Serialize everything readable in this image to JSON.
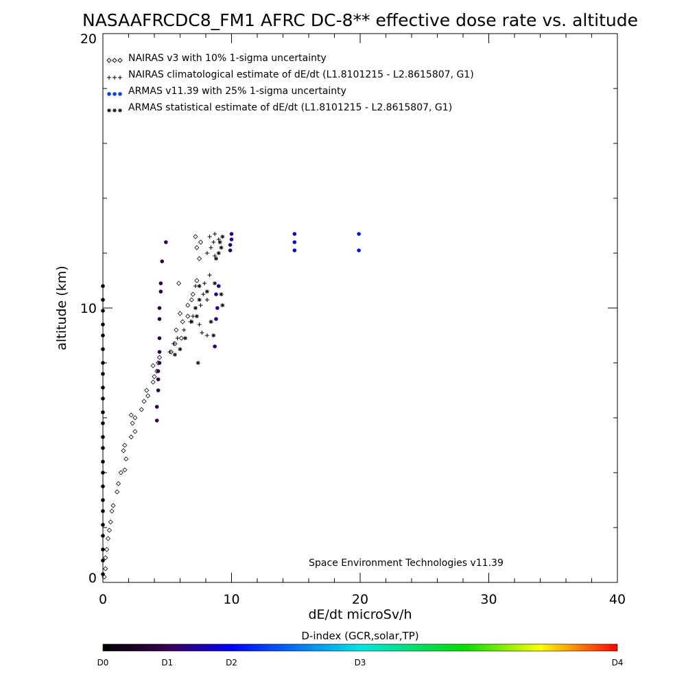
{
  "chart_data": {
    "type": "scatter",
    "title": "NASAAFRCDC8_FM1 AFRC DC-8** effective dose rate vs. altitude",
    "xlabel": "dE/dt microSv/h",
    "ylabel": "altitude (km)",
    "xlim": [
      0,
      40
    ],
    "ylim": [
      0,
      20
    ],
    "x_ticks": [
      "0",
      "10",
      "20",
      "30",
      "40"
    ],
    "y_ticks": [
      "0",
      "10",
      "20"
    ],
    "legend_placement": "top-left",
    "grid": false,
    "credit": "Space Environment Technologies v11.39",
    "colorbar": {
      "title": "D-index (GCR,solar,TP)",
      "labels": [
        "D0",
        "D1",
        "D2",
        "D3",
        "D4"
      ],
      "label_positions": [
        0,
        0.125,
        0.25,
        0.5,
        1.0
      ],
      "colors": [
        "#000000",
        "#3a0050",
        "#0000ff",
        "#00e5e5",
        "#00dd00",
        "#ffff00",
        "#ff0000"
      ]
    },
    "series": [
      {
        "name": "NAIRAS v3 with 10% 1-sigma uncertainty",
        "marker": "diamond",
        "points": [
          [
            0.1,
            0.2
          ],
          [
            0.2,
            0.5
          ],
          [
            0.2,
            0.9
          ],
          [
            0.3,
            1.2
          ],
          [
            0.4,
            1.6
          ],
          [
            0.5,
            1.9
          ],
          [
            0.6,
            2.2
          ],
          [
            0.7,
            2.6
          ],
          [
            0.8,
            2.8
          ],
          [
            1.1,
            3.3
          ],
          [
            1.2,
            3.6
          ],
          [
            1.4,
            4.0
          ],
          [
            1.7,
            4.1
          ],
          [
            1.8,
            4.5
          ],
          [
            1.6,
            4.8
          ],
          [
            1.7,
            5.0
          ],
          [
            2.2,
            5.3
          ],
          [
            2.5,
            5.5
          ],
          [
            2.3,
            5.8
          ],
          [
            2.5,
            6.0
          ],
          [
            2.2,
            6.1
          ],
          [
            3.0,
            6.3
          ],
          [
            3.2,
            6.6
          ],
          [
            3.5,
            6.8
          ],
          [
            3.4,
            7.0
          ],
          [
            3.9,
            7.3
          ],
          [
            4.0,
            7.5
          ],
          [
            4.2,
            7.7
          ],
          [
            3.9,
            7.9
          ],
          [
            4.3,
            8.0
          ],
          [
            4.4,
            8.2
          ],
          [
            5.3,
            8.4
          ],
          [
            5.6,
            8.7
          ],
          [
            6.1,
            8.9
          ],
          [
            5.7,
            9.2
          ],
          [
            6.2,
            9.5
          ],
          [
            6.6,
            9.7
          ],
          [
            6.0,
            9.8
          ],
          [
            6.6,
            10.1
          ],
          [
            6.9,
            10.3
          ],
          [
            7.0,
            10.5
          ],
          [
            5.9,
            10.9
          ],
          [
            7.3,
            11.0
          ],
          [
            7.5,
            11.8
          ],
          [
            7.3,
            12.2
          ],
          [
            7.6,
            12.4
          ],
          [
            7.2,
            12.6
          ]
        ]
      },
      {
        "name": "NAIRAS climatological estimate of dE/dt (L1.8101215 - L2.8615807, G1)",
        "marker": "plus",
        "points": [
          [
            5.2,
            8.4
          ],
          [
            5.5,
            8.7
          ],
          [
            5.8,
            8.9
          ],
          [
            6.3,
            9.2
          ],
          [
            6.8,
            9.5
          ],
          [
            7.0,
            9.7
          ],
          [
            7.5,
            9.4
          ],
          [
            7.7,
            9.1
          ],
          [
            8.1,
            9.0
          ],
          [
            7.6,
            10.1
          ],
          [
            7.8,
            10.5
          ],
          [
            8.1,
            10.3
          ],
          [
            7.2,
            10.8
          ],
          [
            7.9,
            10.9
          ],
          [
            8.3,
            11.2
          ],
          [
            8.1,
            12.0
          ],
          [
            8.4,
            12.2
          ],
          [
            8.6,
            12.4
          ],
          [
            8.3,
            12.6
          ],
          [
            8.7,
            12.7
          ],
          [
            9.0,
            12.5
          ],
          [
            8.7,
            11.9
          ]
        ]
      },
      {
        "name": "ARMAS v11.39 with 25% 1-sigma uncertainty",
        "marker": "filled-circle",
        "points": [
          [
            0,
            0.3
          ],
          [
            0,
            0.8
          ],
          [
            0,
            1.2
          ],
          [
            0,
            1.7
          ],
          [
            0,
            2.1
          ],
          [
            0,
            2.6
          ],
          [
            0,
            3.0
          ],
          [
            0,
            3.5
          ],
          [
            0,
            4.0
          ],
          [
            0,
            4.4
          ],
          [
            0,
            4.9
          ],
          [
            0,
            5.3
          ],
          [
            0,
            5.8
          ],
          [
            0,
            6.2
          ],
          [
            0,
            6.7
          ],
          [
            0,
            7.1
          ],
          [
            0,
            7.6
          ],
          [
            0,
            8.0
          ],
          [
            0,
            8.5
          ],
          [
            0,
            9.0
          ],
          [
            0,
            9.4
          ],
          [
            0,
            9.9
          ],
          [
            0,
            10.3
          ],
          [
            0,
            10.8
          ],
          [
            4.2,
            5.9
          ],
          [
            4.2,
            6.4
          ],
          [
            4.3,
            7.0
          ],
          [
            4.3,
            7.4
          ],
          [
            4.3,
            7.7
          ],
          [
            4.4,
            8.0
          ],
          [
            4.4,
            8.4
          ],
          [
            4.4,
            8.9
          ],
          [
            4.4,
            9.6
          ],
          [
            4.4,
            10.0
          ],
          [
            4.5,
            10.6
          ],
          [
            4.5,
            10.9
          ],
          [
            4.6,
            11.7
          ],
          [
            4.9,
            12.4
          ],
          [
            8.7,
            8.6
          ],
          [
            8.8,
            9.6
          ],
          [
            8.9,
            10.0
          ],
          [
            8.8,
            10.5
          ],
          [
            9.0,
            10.8
          ],
          [
            9.9,
            12.1
          ],
          [
            9.9,
            12.3
          ],
          [
            10.0,
            12.5
          ],
          [
            10.0,
            12.7
          ],
          [
            14.9,
            12.1
          ],
          [
            14.9,
            12.4
          ],
          [
            14.9,
            12.7
          ],
          [
            19.9,
            12.1
          ],
          [
            19.9,
            12.7
          ]
        ],
        "d_index": [
          0,
          0,
          0,
          0,
          0,
          0,
          0,
          0,
          0,
          0,
          0,
          0,
          0,
          0,
          0,
          0,
          0,
          0,
          0,
          0,
          0,
          0,
          0,
          0,
          0.1,
          0.1,
          0.1,
          0.1,
          0.1,
          0.1,
          0.1,
          0.1,
          0.1,
          0.1,
          0.1,
          0.1,
          0.1,
          0.11,
          0.16,
          0.16,
          0.16,
          0.16,
          0.16,
          0.17,
          0.17,
          0.17,
          0.17,
          0.22,
          0.22,
          0.22,
          0.27,
          0.27
        ]
      },
      {
        "name": "ARMAS statistical estimate of dE/dt (L1.8101215 - L2.8615807, G1)",
        "marker": "asterisk",
        "points": [
          [
            5.6,
            8.3
          ],
          [
            6.0,
            8.5
          ],
          [
            6.4,
            8.9
          ],
          [
            7.4,
            8.0
          ],
          [
            6.9,
            9.5
          ],
          [
            7.3,
            9.7
          ],
          [
            8.4,
            9.5
          ],
          [
            8.6,
            9.0
          ],
          [
            7.2,
            10.0
          ],
          [
            7.5,
            10.3
          ],
          [
            8.1,
            10.6
          ],
          [
            8.7,
            10.9
          ],
          [
            9.2,
            10.5
          ],
          [
            9.3,
            10.1
          ],
          [
            7.5,
            10.8
          ],
          [
            8.8,
            11.8
          ],
          [
            9.0,
            12.0
          ],
          [
            9.2,
            12.2
          ],
          [
            9.3,
            12.6
          ],
          [
            9.1,
            12.4
          ]
        ]
      }
    ]
  }
}
